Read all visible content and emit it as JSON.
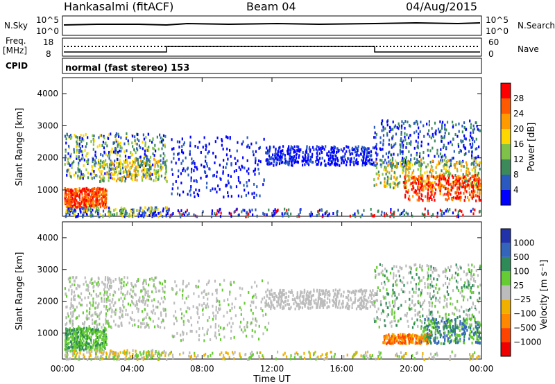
{
  "header": {
    "station": "Hankasalmi (fitACF)",
    "beam": "Beam 04",
    "date": "04/Aug/2015"
  },
  "status_panels": {
    "nsky_label": "N.Sky",
    "nsearch_label": "N.Search",
    "freq_label_1": "Freq.",
    "freq_label_2": "[MHz]",
    "nave_label": "Nave",
    "cpid_label": "CPID",
    "noise_ticks": [
      "10^5",
      "10^0"
    ],
    "noise_right_ticks": [
      "10^5",
      "10^0"
    ],
    "freq_ticks": [
      "18",
      "8"
    ],
    "nave_ticks": [
      "60",
      "0"
    ],
    "cpid_text": "normal (fast stereo) 153"
  },
  "chart_data": [
    {
      "type": "heatmap",
      "name": "power",
      "ylabel": "Slant Range [km]",
      "yticks": [
        "1000",
        "2000",
        "3000",
        "4000"
      ],
      "ylim": [
        180,
        4500
      ],
      "colorbar_label": "Power [dB]",
      "colorbar_ticks": [
        "4",
        "8",
        "12",
        "16",
        "20",
        "24",
        "28"
      ],
      "colors": [
        "#0000ff",
        "#2a5abf",
        "#3c8a5a",
        "#7fc24a",
        "#ffd700",
        "#ff9a00",
        "#ff5a00",
        "#ff0000"
      ]
    },
    {
      "type": "heatmap",
      "name": "velocity",
      "ylabel": "Slant Range [km]",
      "yticks": [
        "1000",
        "2000",
        "3000",
        "4000"
      ],
      "ylim": [
        180,
        4500
      ],
      "colorbar_label": "Velocity [m s⁻¹]",
      "colorbar_ticks": [
        "1000",
        "500",
        "100",
        "25",
        "−25",
        "−100",
        "−500",
        "−1000"
      ],
      "colors": [
        "#2233aa",
        "#3366bb",
        "#2e8b57",
        "#66cc33",
        "#bcbcbc",
        "#f0b000",
        "#ff8800",
        "#ff4400",
        "#ee0000"
      ]
    }
  ],
  "time_axis": {
    "label": "Time UT",
    "ticks": [
      "00:00",
      "04:00",
      "08:00",
      "12:00",
      "16:00",
      "20:00",
      "00:00"
    ]
  }
}
